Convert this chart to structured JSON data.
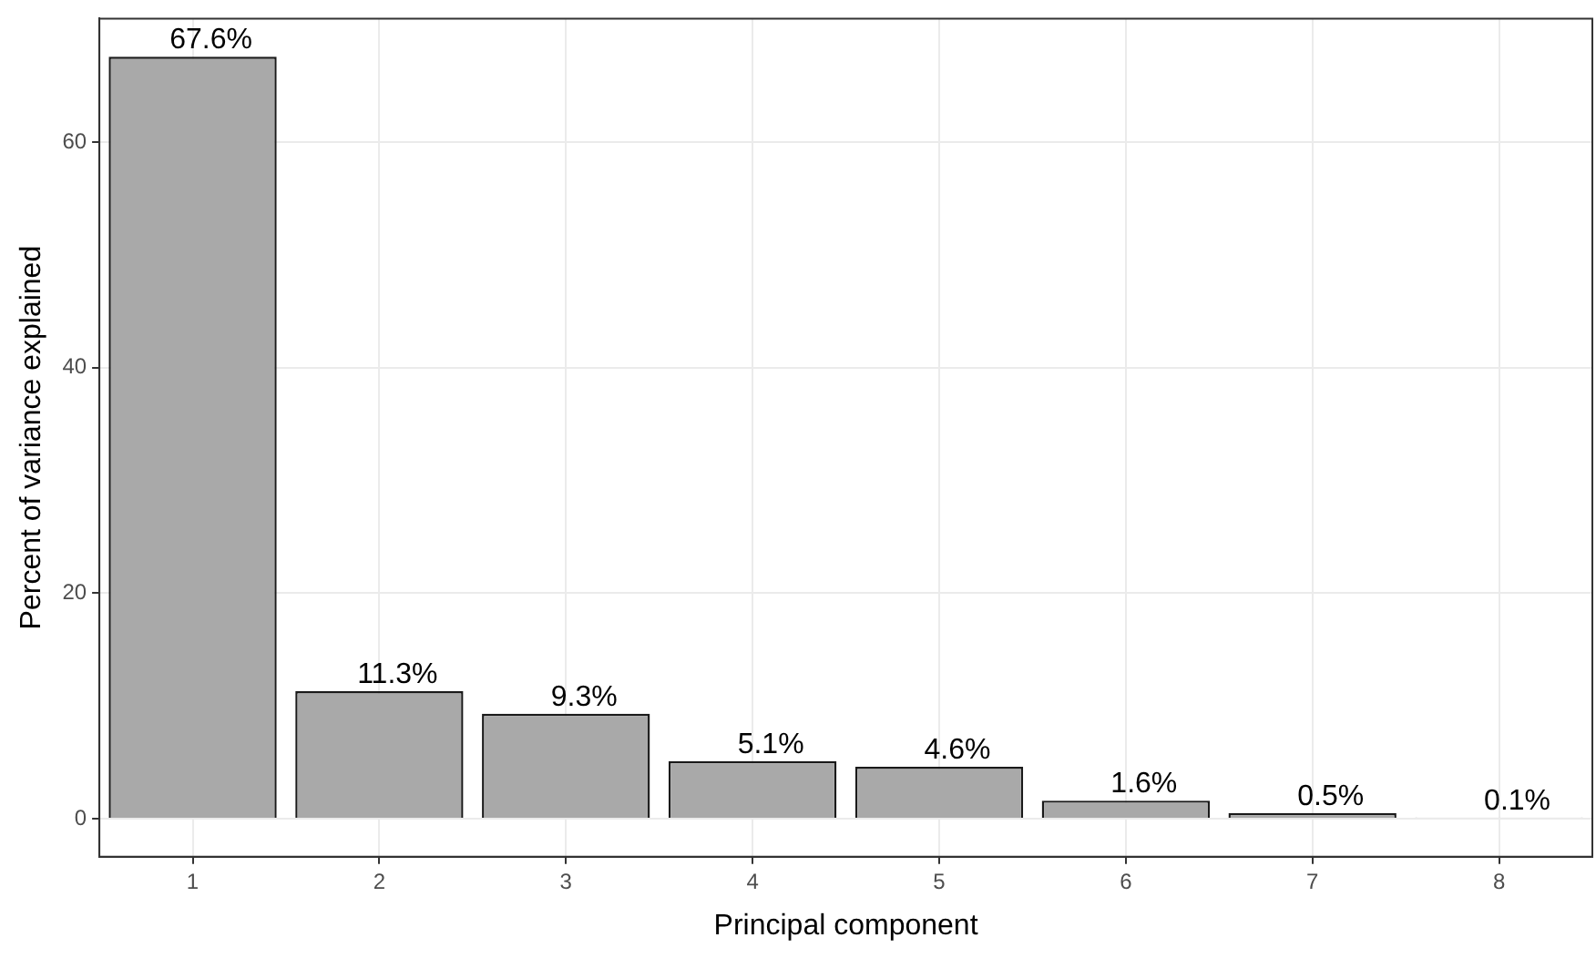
{
  "chart_data": {
    "type": "bar",
    "xlabel": "Principal component",
    "ylabel": "Percent of variance explained",
    "categories": [
      "1",
      "2",
      "3",
      "4",
      "5",
      "6",
      "7",
      "8"
    ],
    "values": [
      67.6,
      11.3,
      9.3,
      5.1,
      4.6,
      1.6,
      0.5,
      0.1
    ],
    "value_labels": [
      "67.6%",
      "11.3%",
      "9.3%",
      "5.1%",
      "4.6%",
      "1.6%",
      "0.5%",
      "0.1%"
    ],
    "color": "#a9a9a9",
    "ylim": [
      -3.38,
      70.98
    ],
    "yticks": [
      0,
      20,
      40,
      60
    ],
    "grid": true,
    "legend": false
  }
}
